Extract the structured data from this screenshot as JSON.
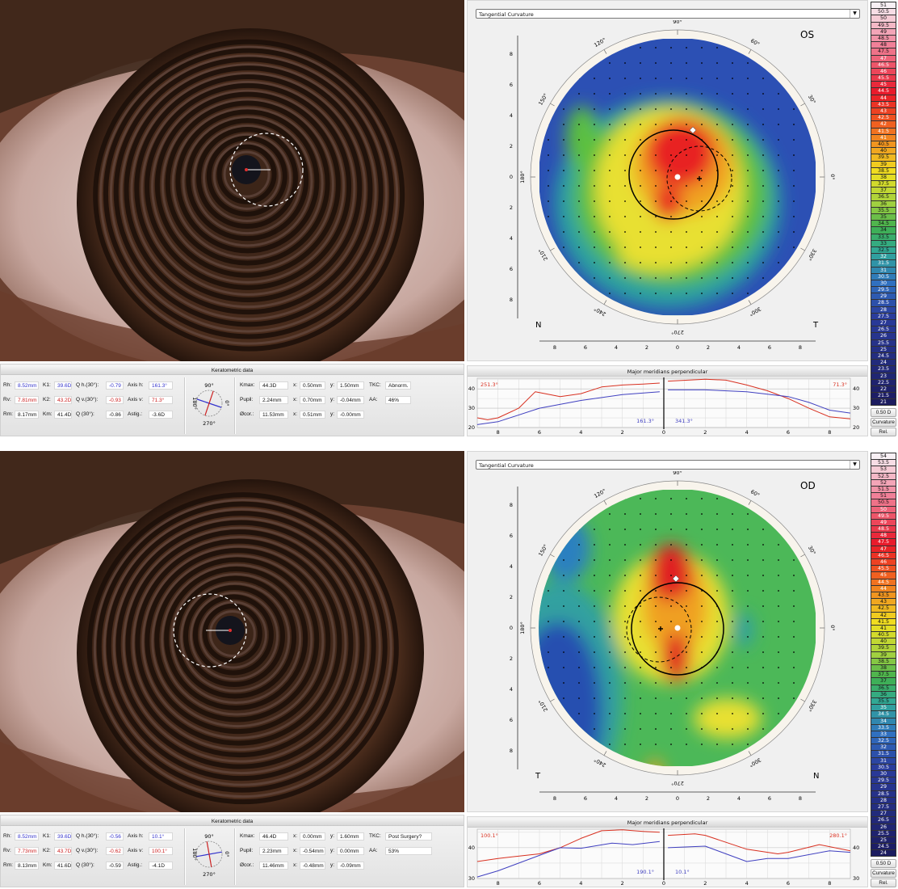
{
  "colors": {
    "k_blue": "#3333cc",
    "k_red": "#cc2222",
    "curve_red": "#d83020",
    "curve_blue": "#4040c0"
  },
  "map_axes": {
    "angle_labels": [
      "0°",
      "30°",
      "60°",
      "90°",
      "120°",
      "150°",
      "180°",
      "210°",
      "240°",
      "270°",
      "300°",
      "330°"
    ],
    "tick_labels": [
      "8",
      "6",
      "4",
      "2",
      "0",
      "2",
      "4",
      "6",
      "8"
    ]
  },
  "panels": [
    {
      "map": {
        "dropdown": "Tangential Curvature",
        "eye_label": "OS",
        "corner_left": "N",
        "corner_right": "T",
        "map_type": "tangential-curvature-os"
      },
      "kerato": {
        "title": "Keratometric data",
        "rows": [
          [
            {
              "l": "Rh:",
              "v": "8.52mm",
              "c": "blue"
            },
            {
              "l": "K1:",
              "v": "39.6D",
              "c": "blue"
            },
            {
              "l": "Q h.(30°):",
              "v": "-0.79",
              "c": "blue"
            },
            {
              "l": "Axis h:",
              "v": "161.3°",
              "c": "blue"
            }
          ],
          [
            {
              "l": "Rv:",
              "v": "7.81mm",
              "c": "red"
            },
            {
              "l": "K2:",
              "v": "43.2D",
              "c": "red"
            },
            {
              "l": "Q v.(30°):",
              "v": "-0.93",
              "c": "red"
            },
            {
              "l": "Axis v:",
              "v": "71.3°",
              "c": "red"
            }
          ],
          [
            {
              "l": "Rm:",
              "v": "8.17mm",
              "c": ""
            },
            {
              "l": "Km:",
              "v": "41.4D",
              "c": ""
            },
            {
              "l": "Q (30°):",
              "v": "-0.86",
              "c": ""
            },
            {
              "l": "Astig.:",
              "v": "-3.6D",
              "c": ""
            }
          ]
        ],
        "compass": {
          "top": "90°",
          "bottom": "270°",
          "left": "180°",
          "right": "0°",
          "axis_h": 161.3,
          "axis_v": 71.3
        },
        "right_rows": [
          [
            {
              "l": "Kmax:",
              "v": "44.3D"
            },
            {
              "l": "x:",
              "v": "0.50mm"
            },
            {
              "l": "y:",
              "v": "1.50mm"
            },
            {
              "l": "TKC:",
              "v": "Abnorm."
            }
          ],
          [
            {
              "l": "Pupil:",
              "v": "2.24mm"
            },
            {
              "l": "x:",
              "v": "0.70mm"
            },
            {
              "l": "y:",
              "v": "-0.04mm"
            },
            {
              "l": "AA:",
              "v": "46%"
            }
          ],
          [
            {
              "l": "Øcor.:",
              "v": "11.53mm"
            },
            {
              "l": "x:",
              "v": "0.51mm"
            },
            {
              "l": "y:",
              "v": "-0.00mm"
            }
          ]
        ]
      },
      "meridians": {
        "title": "Major meridians perpendicular",
        "ylim": [
          20,
          45.5
        ],
        "y_ticks": [
          "20",
          "30",
          "40"
        ],
        "x_ticks": [
          "8",
          "6",
          "4",
          "2",
          "0",
          "2",
          "4",
          "6",
          "8"
        ],
        "left": {
          "red_label": "251.3°",
          "blue_label": "161.3°",
          "red": [
            [
              9,
              25
            ],
            [
              8.5,
              24
            ],
            [
              8,
              25
            ],
            [
              7,
              30
            ],
            [
              6.2,
              38.5
            ],
            [
              5,
              36
            ],
            [
              4,
              37.5
            ],
            [
              3,
              41
            ],
            [
              2,
              42
            ],
            [
              1,
              42.5
            ],
            [
              0.2,
              43
            ]
          ],
          "blue": [
            [
              9,
              21.5
            ],
            [
              8,
              23
            ],
            [
              6,
              30
            ],
            [
              4,
              34
            ],
            [
              2,
              37
            ],
            [
              0.2,
              38.5
            ]
          ]
        },
        "right": {
          "red_label": "71.3°",
          "blue_label": "341.3°",
          "red": [
            [
              0.2,
              44
            ],
            [
              2,
              45
            ],
            [
              3,
              44.5
            ],
            [
              4,
              42
            ],
            [
              5,
              39
            ],
            [
              6,
              35
            ],
            [
              7,
              30
            ],
            [
              8,
              25.5
            ],
            [
              9,
              24.5
            ]
          ],
          "blue": [
            [
              0.2,
              39.5
            ],
            [
              2,
              39.5
            ],
            [
              4,
              38.5
            ],
            [
              6,
              36
            ],
            [
              7,
              33
            ],
            [
              8,
              29
            ],
            [
              9,
              27.5
            ]
          ]
        }
      },
      "scale": {
        "values": [
          "51",
          "50.5",
          "50",
          "49.5",
          "49",
          "48.5",
          "48",
          "47.5",
          "47",
          "46.5",
          "46",
          "45.5",
          "45",
          "44.5",
          "44",
          "43.5",
          "43",
          "42.5",
          "42",
          "41.5",
          "41",
          "40.5",
          "40",
          "39.5",
          "39",
          "38.5",
          "38",
          "37.5",
          "37",
          "36.5",
          "36",
          "35.5",
          "35",
          "34.5",
          "34",
          "33.5",
          "33",
          "32.5",
          "32",
          "31.5",
          "31",
          "30.5",
          "30",
          "29.5",
          "29",
          "28.5",
          "28",
          "27.5",
          "27",
          "26.5",
          "26",
          "25.5",
          "25",
          "24.5",
          "24",
          "23.5",
          "23",
          "22.5",
          "22",
          "21.5",
          "21"
        ],
        "step": "0.50 D",
        "mode": "Curvature",
        "rel": "Rel."
      }
    },
    {
      "map": {
        "dropdown": "Tangential Curvature",
        "eye_label": "OD",
        "corner_left": "T",
        "corner_right": "N",
        "map_type": "tangential-curvature-od"
      },
      "kerato": {
        "title": "Keratometric data",
        "rows": [
          [
            {
              "l": "Rh:",
              "v": "8.52mm",
              "c": "blue"
            },
            {
              "l": "K1:",
              "v": "39.6D",
              "c": "blue"
            },
            {
              "l": "Q h.(30°):",
              "v": "-0.56",
              "c": "blue"
            },
            {
              "l": "Axis h:",
              "v": "10.1°",
              "c": "blue"
            }
          ],
          [
            {
              "l": "Rv:",
              "v": "7.73mm",
              "c": "red"
            },
            {
              "l": "K2:",
              "v": "43.7D",
              "c": "red"
            },
            {
              "l": "Q v.(30°):",
              "v": "-0.62",
              "c": "red"
            },
            {
              "l": "Axis v:",
              "v": "100.1°",
              "c": "red"
            }
          ],
          [
            {
              "l": "Rm:",
              "v": "8.13mm",
              "c": ""
            },
            {
              "l": "Km:",
              "v": "41.6D",
              "c": ""
            },
            {
              "l": "Q (30°):",
              "v": "-0.59",
              "c": ""
            },
            {
              "l": "Astig.:",
              "v": "-4.1D",
              "c": ""
            }
          ]
        ],
        "compass": {
          "top": "90°",
          "bottom": "270°",
          "left": "180°",
          "right": "0°",
          "axis_h": 10.1,
          "axis_v": 100.1
        },
        "right_rows": [
          [
            {
              "l": "Kmax:",
              "v": "46.4D"
            },
            {
              "l": "x:",
              "v": "0.00mm"
            },
            {
              "l": "y:",
              "v": "1.60mm"
            },
            {
              "l": "TKC:",
              "v": "Post Surgery?"
            }
          ],
          [
            {
              "l": "Pupil:",
              "v": "2.23mm"
            },
            {
              "l": "x:",
              "v": "-0.54mm"
            },
            {
              "l": "y:",
              "v": "0.00mm"
            },
            {
              "l": "AA:",
              "v": "53%"
            }
          ],
          [
            {
              "l": "Øcor.:",
              "v": "11.46mm"
            },
            {
              "l": "x:",
              "v": "-0.48mm"
            },
            {
              "l": "y:",
              "v": "-0.09mm"
            }
          ]
        ]
      },
      "meridians": {
        "title": "Major meridians perpendicular",
        "ylim": [
          30,
          46
        ],
        "y_ticks": [
          "30",
          "40"
        ],
        "x_ticks": [
          "8",
          "6",
          "4",
          "2",
          "0",
          "2",
          "4",
          "6",
          "8"
        ],
        "left": {
          "red_label": "100.1°",
          "blue_label": "190.1°",
          "red": [
            [
              9,
              35.5
            ],
            [
              8,
              36.5
            ],
            [
              6,
              38
            ],
            [
              5,
              40
            ],
            [
              4,
              43
            ],
            [
              3,
              45.5
            ],
            [
              2,
              45.8
            ],
            [
              1,
              45.3
            ],
            [
              0.2,
              45
            ]
          ],
          "blue": [
            [
              9,
              30.5
            ],
            [
              8,
              32.5
            ],
            [
              6,
              37.5
            ],
            [
              5,
              40
            ],
            [
              4,
              39.8
            ],
            [
              2.5,
              41.5
            ],
            [
              1.5,
              41
            ],
            [
              0.2,
              42
            ]
          ]
        },
        "right": {
          "red_label": "280.1°",
          "blue_label": "10.1°",
          "red": [
            [
              0.2,
              44
            ],
            [
              1.5,
              44.5
            ],
            [
              2,
              44
            ],
            [
              4,
              39.5
            ],
            [
              5.5,
              38
            ],
            [
              6,
              38.5
            ],
            [
              7.5,
              41
            ],
            [
              9,
              39
            ]
          ],
          "blue": [
            [
              0.2,
              40
            ],
            [
              2,
              40.5
            ],
            [
              4,
              35.5
            ],
            [
              5,
              36.5
            ],
            [
              6,
              36.5
            ],
            [
              8,
              39
            ],
            [
              9,
              38.5
            ]
          ]
        }
      },
      "scale": {
        "values": [
          "54",
          "53.5",
          "53",
          "52.5",
          "52",
          "51.5",
          "51",
          "50.5",
          "50",
          "49.5",
          "49",
          "48.5",
          "48",
          "47.5",
          "47",
          "46.5",
          "46",
          "45.5",
          "45",
          "44.5",
          "44",
          "43.5",
          "43",
          "42.5",
          "42",
          "41.5",
          "41",
          "40.5",
          "40",
          "39.5",
          "39",
          "38.5",
          "38",
          "37.5",
          "37",
          "36.5",
          "36",
          "35.5",
          "35",
          "34.5",
          "34",
          "33.5",
          "33",
          "32.5",
          "32",
          "31.5",
          "31",
          "30.5",
          "30",
          "29.5",
          "29",
          "28.5",
          "28",
          "27.5",
          "27",
          "26.5",
          "26",
          "25.5",
          "25",
          "24.5",
          "24"
        ],
        "step": "0.50 D",
        "mode": "Curvature",
        "rel": "Rel."
      }
    }
  ]
}
